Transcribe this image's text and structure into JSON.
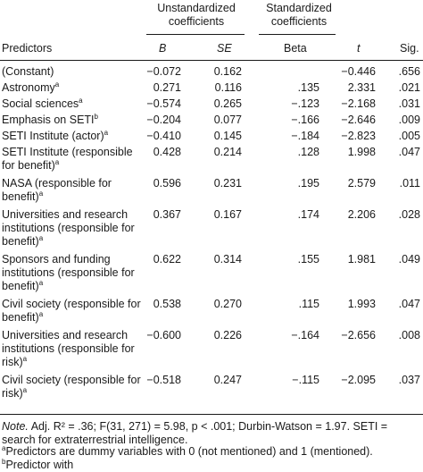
{
  "headers": {
    "unstd_line1": "Unstandardized",
    "unstd_line2": "coefficients",
    "std_line1": "Standardized",
    "std_line2": "coefficients",
    "predictors": "Predictors",
    "b": "B",
    "se": "SE",
    "beta": "Beta",
    "t": "t",
    "sig": "Sig."
  },
  "rows": [
    {
      "predictor": "(Constant)",
      "sup": "",
      "b": "−0.072",
      "se": "0.162",
      "beta": "",
      "t": "−0.446",
      "sig": ".656"
    },
    {
      "predictor": "Astronomy",
      "sup": "a",
      "b": "0.271",
      "se": "0.116",
      "beta": ".135",
      "t": "2.331",
      "sig": ".021"
    },
    {
      "predictor": "Social sciences",
      "sup": "a",
      "b": "−0.574",
      "se": "0.265",
      "beta": "−.123",
      "t": "−2.168",
      "sig": ".031"
    },
    {
      "predictor": "Emphasis on SETI",
      "sup": "b",
      "b": "−0.204",
      "se": "0.077",
      "beta": "−.166",
      "t": "−2.646",
      "sig": ".009"
    },
    {
      "predictor": "SETI Institute (actor)",
      "sup": "a",
      "b": "−0.410",
      "se": "0.145",
      "beta": "−.184",
      "t": "−2.823",
      "sig": ".005"
    },
    {
      "predictor": "SETI Institute (responsible for benefit)",
      "sup": "a",
      "b": "0.428",
      "se": "0.214",
      "beta": ".128",
      "t": "1.998",
      "sig": ".047"
    },
    {
      "predictor": "NASA (responsible for benefit)",
      "sup": "a",
      "b": "0.596",
      "se": "0.231",
      "beta": ".195",
      "t": "2.579",
      "sig": ".011"
    },
    {
      "predictor": "Universities and research institutions (responsible for benefit)",
      "sup": "a",
      "b": "0.367",
      "se": "0.167",
      "beta": ".174",
      "t": "2.206",
      "sig": ".028"
    },
    {
      "predictor": "Sponsors and funding institutions (responsible for benefit)",
      "sup": "a",
      "b": "0.622",
      "se": "0.314",
      "beta": ".155",
      "t": "1.981",
      "sig": ".049"
    },
    {
      "predictor": "Civil society (responsible for benefit)",
      "sup": "a",
      "b": "0.538",
      "se": "0.270",
      "beta": ".115",
      "t": "1.993",
      "sig": ".047"
    },
    {
      "predictor": "Universities and research institutions (responsible for risk)",
      "sup": "a",
      "b": "−0.600",
      "se": "0.226",
      "beta": "−.164",
      "t": "−2.656",
      "sig": ".008"
    },
    {
      "predictor": "Civil society (responsible for risk)",
      "sup": "a",
      "b": "−0.518",
      "se": "0.247",
      "beta": "−.115",
      "t": "−2.095",
      "sig": ".037"
    }
  ],
  "note": {
    "label": "Note.",
    "text": "Adj. R² = .36; F(31, 271) = 5.98, p < .001; Durbin-Watson = 1.97. SETI = search for extraterrestrial intelligence.",
    "footnote_a": "Predictors are dummy variables with 0 (not mentioned) and 1 (mentioned). ",
    "footnote_b": "Predictor with"
  }
}
